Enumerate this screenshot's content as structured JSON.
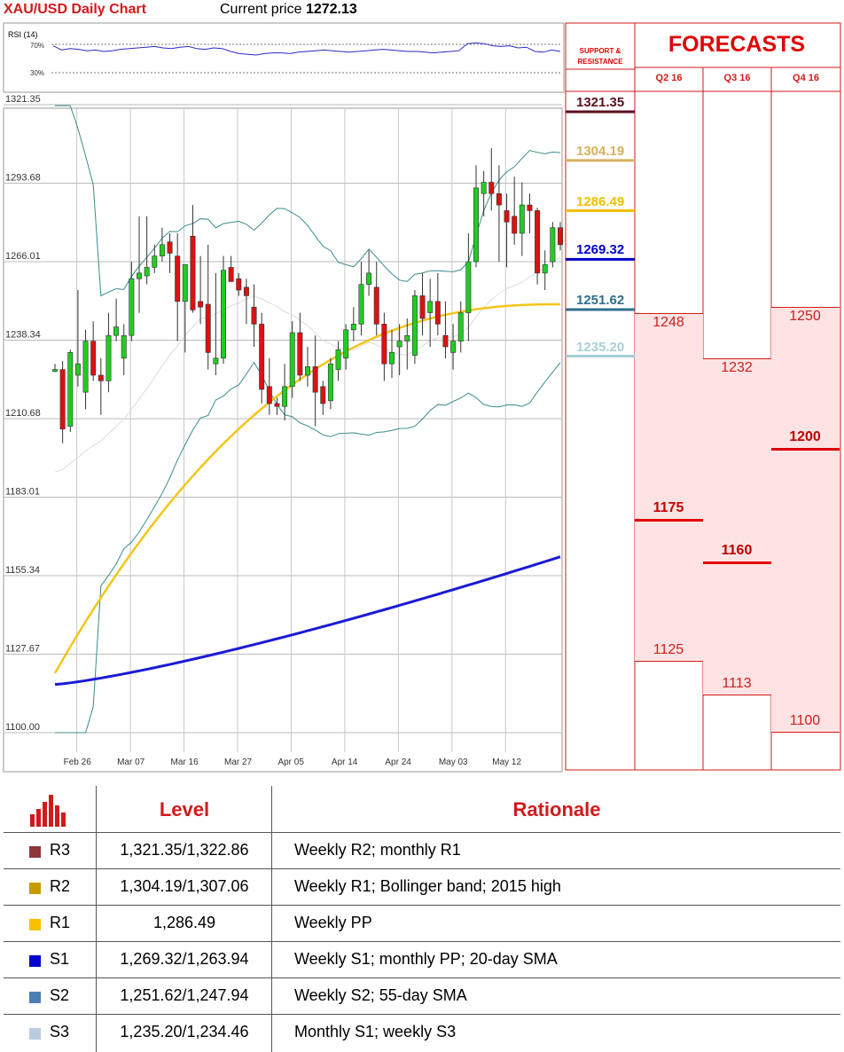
{
  "header": {
    "title": "XAU/USD Daily Chart",
    "price_label": "Current price",
    "price_value": "1272.13"
  },
  "rsi": {
    "label": "RSI (14)",
    "levels": [
      "70%",
      "30%"
    ],
    "values": [
      68,
      62,
      64,
      63,
      61,
      62,
      60,
      61,
      63,
      64,
      65,
      66,
      67,
      65,
      64,
      66,
      67,
      64,
      63,
      65,
      64,
      60,
      57,
      56,
      55,
      57,
      58,
      58,
      57,
      59,
      60,
      61,
      62,
      61,
      60,
      59,
      60,
      61,
      62,
      63,
      62,
      61,
      60,
      60,
      59,
      58,
      59,
      60,
      61,
      71,
      72,
      71,
      68,
      67,
      68,
      65,
      66,
      60,
      59,
      62,
      60
    ]
  },
  "chart_data": {
    "type": "candlestick",
    "title": "XAU/USD Daily Chart",
    "y_ticks": [
      "1321.35",
      "1293.68",
      "1266.01",
      "1238.34",
      "1210.68",
      "1183.01",
      "1155.34",
      "1127.67",
      "1100.00"
    ],
    "ylim": [
      1100.0,
      1321.35
    ],
    "x_ticks": [
      {
        "label": "Feb 26",
        "index": 1
      },
      {
        "label": "Mar 07",
        "index": 8
      },
      {
        "label": "Mar 16",
        "index": 15
      },
      {
        "label": "Mar 27",
        "index": 22
      },
      {
        "label": "Apr 05",
        "index": 29
      },
      {
        "label": "Apr 14",
        "index": 36
      },
      {
        "label": "Apr 24",
        "index": 43
      },
      {
        "label": "May 03",
        "index": 50
      },
      {
        "label": "May 12",
        "index": 57
      }
    ],
    "candles": [
      {
        "o": 1228,
        "h": 1230,
        "l": 1227,
        "c": 1228
      },
      {
        "o": 1228,
        "h": 1231,
        "l": 1202,
        "c": 1207
      },
      {
        "o": 1208,
        "h": 1235,
        "l": 1206,
        "c": 1234
      },
      {
        "o": 1226,
        "h": 1256,
        "l": 1222,
        "c": 1230
      },
      {
        "o": 1220,
        "h": 1242,
        "l": 1214,
        "c": 1238
      },
      {
        "o": 1238,
        "h": 1245,
        "l": 1224,
        "c": 1226
      },
      {
        "o": 1226,
        "h": 1232,
        "l": 1212,
        "c": 1224
      },
      {
        "o": 1224,
        "h": 1248,
        "l": 1220,
        "c": 1240
      },
      {
        "o": 1240,
        "h": 1253,
        "l": 1238,
        "c": 1243
      },
      {
        "o": 1232,
        "h": 1244,
        "l": 1226,
        "c": 1240
      },
      {
        "o": 1240,
        "h": 1266,
        "l": 1238,
        "c": 1260
      },
      {
        "o": 1260,
        "h": 1282,
        "l": 1248,
        "c": 1262
      },
      {
        "o": 1261,
        "h": 1282,
        "l": 1258,
        "c": 1264
      },
      {
        "o": 1264,
        "h": 1272,
        "l": 1262,
        "c": 1268
      },
      {
        "o": 1268,
        "h": 1278,
        "l": 1266,
        "c": 1272
      },
      {
        "o": 1273,
        "h": 1276,
        "l": 1262,
        "c": 1269
      },
      {
        "o": 1268,
        "h": 1276,
        "l": 1238,
        "c": 1252
      },
      {
        "o": 1252,
        "h": 1264,
        "l": 1234,
        "c": 1265
      },
      {
        "o": 1275,
        "h": 1286,
        "l": 1248,
        "c": 1249
      },
      {
        "o": 1252,
        "h": 1268,
        "l": 1244,
        "c": 1250
      },
      {
        "o": 1251,
        "h": 1272,
        "l": 1228,
        "c": 1234
      },
      {
        "o": 1230,
        "h": 1262,
        "l": 1226,
        "c": 1232
      },
      {
        "o": 1232,
        "h": 1268,
        "l": 1230,
        "c": 1263
      },
      {
        "o": 1264,
        "h": 1268,
        "l": 1260,
        "c": 1259
      },
      {
        "o": 1260,
        "h": 1262,
        "l": 1254,
        "c": 1256
      },
      {
        "o": 1257,
        "h": 1260,
        "l": 1244,
        "c": 1254
      },
      {
        "o": 1250,
        "h": 1258,
        "l": 1236,
        "c": 1244
      },
      {
        "o": 1244,
        "h": 1248,
        "l": 1216,
        "c": 1221
      },
      {
        "o": 1222,
        "h": 1232,
        "l": 1212,
        "c": 1216
      },
      {
        "o": 1216,
        "h": 1218,
        "l": 1212,
        "c": 1215
      },
      {
        "o": 1215,
        "h": 1230,
        "l": 1210,
        "c": 1222
      },
      {
        "o": 1222,
        "h": 1245,
        "l": 1218,
        "c": 1241
      },
      {
        "o": 1241,
        "h": 1248,
        "l": 1224,
        "c": 1226
      },
      {
        "o": 1226,
        "h": 1236,
        "l": 1222,
        "c": 1229
      },
      {
        "o": 1229,
        "h": 1240,
        "l": 1208,
        "c": 1220
      },
      {
        "o": 1222,
        "h": 1224,
        "l": 1212,
        "c": 1216
      },
      {
        "o": 1217,
        "h": 1232,
        "l": 1214,
        "c": 1230
      },
      {
        "o": 1228,
        "h": 1238,
        "l": 1224,
        "c": 1235
      },
      {
        "o": 1232,
        "h": 1244,
        "l": 1228,
        "c": 1242
      },
      {
        "o": 1242,
        "h": 1250,
        "l": 1238,
        "c": 1244
      },
      {
        "o": 1244,
        "h": 1266,
        "l": 1240,
        "c": 1258
      },
      {
        "o": 1258,
        "h": 1270,
        "l": 1254,
        "c": 1262
      },
      {
        "o": 1257,
        "h": 1266,
        "l": 1240,
        "c": 1244
      },
      {
        "o": 1244,
        "h": 1248,
        "l": 1224,
        "c": 1230
      },
      {
        "o": 1230,
        "h": 1242,
        "l": 1225,
        "c": 1234
      },
      {
        "o": 1236,
        "h": 1244,
        "l": 1226,
        "c": 1238
      },
      {
        "o": 1238,
        "h": 1246,
        "l": 1228,
        "c": 1240
      },
      {
        "o": 1233,
        "h": 1256,
        "l": 1230,
        "c": 1254
      },
      {
        "o": 1254,
        "h": 1262,
        "l": 1240,
        "c": 1246
      },
      {
        "o": 1248,
        "h": 1260,
        "l": 1236,
        "c": 1252
      },
      {
        "o": 1252,
        "h": 1262,
        "l": 1240,
        "c": 1244
      },
      {
        "o": 1240,
        "h": 1252,
        "l": 1232,
        "c": 1236
      },
      {
        "o": 1234,
        "h": 1244,
        "l": 1228,
        "c": 1238
      },
      {
        "o": 1238,
        "h": 1252,
        "l": 1234,
        "c": 1248
      },
      {
        "o": 1248,
        "h": 1276,
        "l": 1238,
        "c": 1266
      },
      {
        "o": 1266,
        "h": 1300,
        "l": 1264,
        "c": 1292
      },
      {
        "o": 1290,
        "h": 1298,
        "l": 1282,
        "c": 1294
      },
      {
        "o": 1294,
        "h": 1306,
        "l": 1284,
        "c": 1290
      },
      {
        "o": 1290,
        "h": 1300,
        "l": 1266,
        "c": 1286
      },
      {
        "o": 1284,
        "h": 1290,
        "l": 1264,
        "c": 1280
      },
      {
        "o": 1282,
        "h": 1296,
        "l": 1272,
        "c": 1276
      },
      {
        "o": 1276,
        "h": 1294,
        "l": 1268,
        "c": 1286
      },
      {
        "o": 1286,
        "h": 1290,
        "l": 1276,
        "c": 1284
      },
      {
        "o": 1284,
        "h": 1285,
        "l": 1258,
        "c": 1262
      },
      {
        "o": 1262,
        "h": 1270,
        "l": 1256,
        "c": 1265
      },
      {
        "o": 1266,
        "h": 1280,
        "l": 1264,
        "c": 1278
      },
      {
        "o": 1278,
        "h": 1280,
        "l": 1270,
        "c": 1272
      }
    ],
    "series": [
      {
        "name": "20-day SMA",
        "color": "#6a9c9a",
        "values": []
      },
      {
        "name": "55-day SMA",
        "color": "#f5c518",
        "values": []
      },
      {
        "name": "200-day SMA",
        "color": "#1a1ad6",
        "values": []
      }
    ]
  },
  "support_resistance": {
    "title_line1": "SUPPORT &",
    "title_line2": "RESISTANCE",
    "levels": [
      {
        "value": "1321.35",
        "color": "#5a0f1a"
      },
      {
        "value": "1304.19",
        "color": "#d8b060"
      },
      {
        "value": "1286.49",
        "color": "#f0c000"
      },
      {
        "value": "1269.32",
        "color": "#0000c8"
      },
      {
        "value": "1251.62",
        "color": "#2f6f8c"
      },
      {
        "value": "1235.20",
        "color": "#a8cfd6"
      }
    ]
  },
  "forecasts": {
    "title": "FORECASTS",
    "quarters": [
      {
        "label": "Q2 16",
        "high": 1248,
        "mid": 1175,
        "low": 1125
      },
      {
        "label": "Q3 16",
        "high": 1232,
        "mid": 1160,
        "low": 1113
      },
      {
        "label": "Q4 16",
        "high": 1250,
        "mid": 1200,
        "low": 1100
      }
    ]
  },
  "table": {
    "col_level": "Level",
    "col_rationale": "Rationale",
    "rows": [
      {
        "code": "R3",
        "level": "1,321.35/1,322.86",
        "rationale": "Weekly R2; monthly R1",
        "color": "#8b3a3a"
      },
      {
        "code": "R2",
        "level": "1,304.19/1,307.06",
        "rationale": "Weekly R1; Bollinger band; 2015 high",
        "color": "#c99a00"
      },
      {
        "code": "R1",
        "level": "1,286.49",
        "rationale": "Weekly PP",
        "color": "#f5c200"
      },
      {
        "code": "S1",
        "level": "1,269.32/1,263.94",
        "rationale": "Weekly S1; monthly PP; 20-day SMA",
        "color": "#0000cc"
      },
      {
        "code": "S2",
        "level": "1,251.62/1,247.94",
        "rationale": "Weekly S2; 55-day SMA",
        "color": "#4a7fb5"
      },
      {
        "code": "S3",
        "level": "1,235.20/1,234.46",
        "rationale": "Monthly S1; weekly S3",
        "color": "#b8cce0"
      }
    ]
  }
}
